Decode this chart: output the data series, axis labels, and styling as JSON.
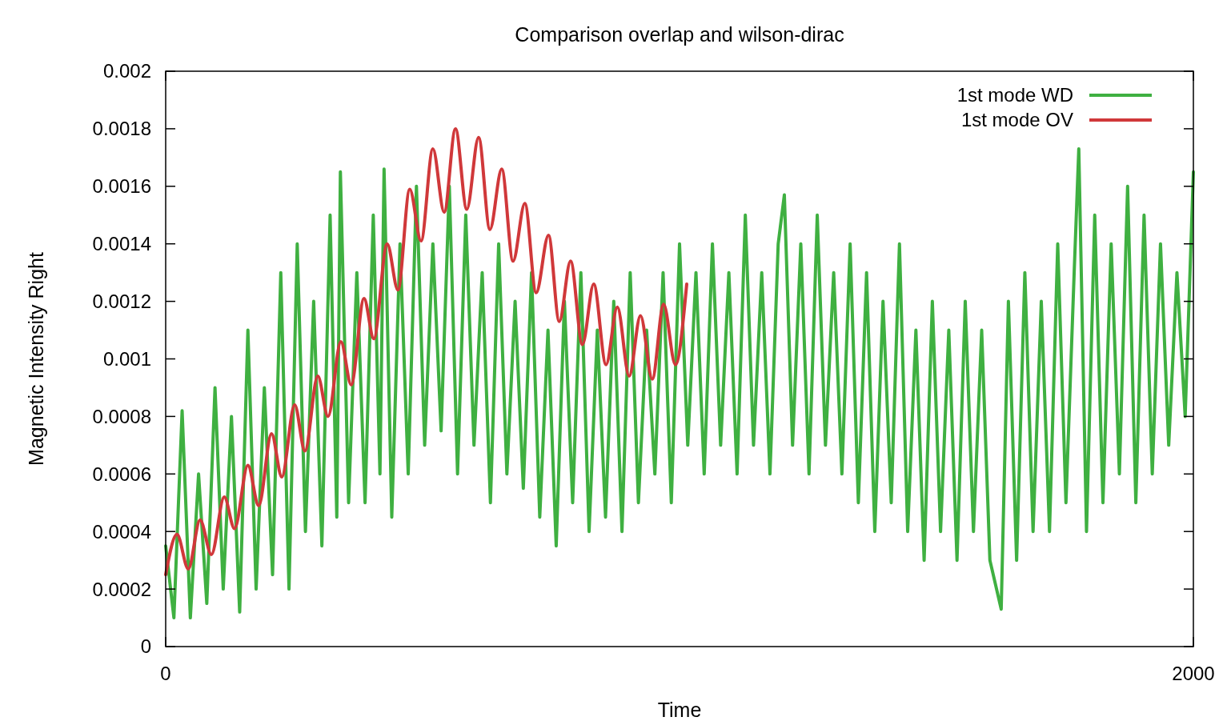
{
  "chart_data": {
    "type": "line",
    "title": "Comparison overlap and wilson-dirac",
    "xlabel": "Time",
    "ylabel": "Magnetic Intensity Right",
    "xlim": [
      0,
      2000
    ],
    "xticks": [
      0,
      2000
    ],
    "ylim": [
      0,
      0.002
    ],
    "yticks": [
      0,
      0.0002,
      0.0004,
      0.0006,
      0.0008,
      0.001,
      0.0012,
      0.0014,
      0.0016,
      0.0018,
      0.002
    ],
    "grid": false,
    "legend": "top right",
    "line_style": "solid",
    "series": [
      {
        "name": "1st mode WD",
        "color": "#3fb041",
        "x": [
          0,
          16,
          32,
          48,
          64,
          80,
          96,
          112,
          128,
          144,
          160,
          176,
          192,
          208,
          224,
          240,
          256,
          272,
          288,
          304,
          320,
          333,
          340,
          356,
          372,
          388,
          404,
          417,
          425,
          440,
          456,
          472,
          488,
          504,
          520,
          536,
          552,
          568,
          584,
          600,
          616,
          632,
          648,
          664,
          680,
          696,
          712,
          728,
          744,
          760,
          776,
          792,
          808,
          824,
          840,
          856,
          872,
          888,
          904,
          920,
          936,
          952,
          968,
          984,
          1000,
          1016,
          1032,
          1048,
          1064,
          1080,
          1096,
          1112,
          1128,
          1144,
          1160,
          1176,
          1192,
          1204,
          1220,
          1236,
          1252,
          1268,
          1284,
          1300,
          1316,
          1332,
          1348,
          1364,
          1380,
          1396,
          1412,
          1428,
          1444,
          1460,
          1476,
          1492,
          1508,
          1524,
          1540,
          1556,
          1572,
          1588,
          1604,
          1626,
          1640,
          1656,
          1672,
          1688,
          1704,
          1720,
          1736,
          1752,
          1768,
          1777,
          1792,
          1808,
          1824,
          1840,
          1856,
          1872,
          1888,
          1904,
          1920,
          1936,
          1952,
          1968,
          1984,
          2000
        ],
        "values": [
          0.00035,
          0.0001,
          0.00082,
          0.0001,
          0.0006,
          0.00015,
          0.0009,
          0.0002,
          0.0008,
          0.00012,
          0.0011,
          0.0002,
          0.0009,
          0.00025,
          0.0013,
          0.0002,
          0.0014,
          0.0004,
          0.0012,
          0.00035,
          0.0015,
          0.00045,
          0.00165,
          0.0005,
          0.0013,
          0.0005,
          0.0015,
          0.0006,
          0.00166,
          0.00045,
          0.0014,
          0.0006,
          0.0016,
          0.0007,
          0.0014,
          0.00075,
          0.0016,
          0.0006,
          0.0015,
          0.0007,
          0.0013,
          0.0005,
          0.0014,
          0.0006,
          0.0012,
          0.00055,
          0.0013,
          0.00045,
          0.0011,
          0.00035,
          0.0012,
          0.0005,
          0.0013,
          0.0004,
          0.0011,
          0.00045,
          0.0012,
          0.0004,
          0.0013,
          0.0005,
          0.0011,
          0.0006,
          0.0013,
          0.0005,
          0.0014,
          0.0007,
          0.0013,
          0.0006,
          0.0014,
          0.0007,
          0.0013,
          0.0006,
          0.0015,
          0.0007,
          0.0013,
          0.0006,
          0.0014,
          0.00157,
          0.0007,
          0.0014,
          0.0006,
          0.0015,
          0.0007,
          0.0013,
          0.0006,
          0.0014,
          0.0005,
          0.0013,
          0.0004,
          0.0012,
          0.0005,
          0.0014,
          0.0004,
          0.0011,
          0.0003,
          0.0012,
          0.0004,
          0.0011,
          0.0003,
          0.0012,
          0.0004,
          0.0011,
          0.0003,
          0.00013,
          0.0012,
          0.0003,
          0.0013,
          0.0004,
          0.0012,
          0.0004,
          0.0014,
          0.0005,
          0.0013,
          0.00173,
          0.0004,
          0.0015,
          0.0005,
          0.0014,
          0.0006,
          0.0016,
          0.0005,
          0.0015,
          0.0006,
          0.0014,
          0.0007,
          0.0013,
          0.0008,
          0.00165
        ]
      },
      {
        "name": "1st mode OV",
        "color": "#d0383a",
        "x": [
          0,
          22,
          44,
          67,
          89,
          114,
          134,
          160,
          181,
          206,
          226,
          251,
          271,
          296,
          316,
          341,
          361,
          386,
          405,
          431,
          452,
          475,
          497,
          520,
          542,
          564,
          586,
          609,
          631,
          654,
          676,
          699,
          721,
          745,
          766,
          788,
          811,
          833,
          857,
          879,
          902,
          924,
          947,
          969,
          992,
          1014
        ],
        "values": [
          0.00025,
          0.00039,
          0.00027,
          0.00044,
          0.00032,
          0.00052,
          0.00041,
          0.00063,
          0.00049,
          0.00074,
          0.00059,
          0.00084,
          0.00068,
          0.00094,
          0.0008,
          0.00106,
          0.00091,
          0.00121,
          0.00107,
          0.0014,
          0.00124,
          0.00159,
          0.00141,
          0.00173,
          0.00151,
          0.0018,
          0.00152,
          0.00177,
          0.00145,
          0.00166,
          0.00134,
          0.00154,
          0.00123,
          0.00143,
          0.00113,
          0.00134,
          0.00105,
          0.00126,
          0.00098,
          0.00118,
          0.00094,
          0.00115,
          0.00093,
          0.00119,
          0.00098,
          0.00126
        ]
      }
    ]
  }
}
